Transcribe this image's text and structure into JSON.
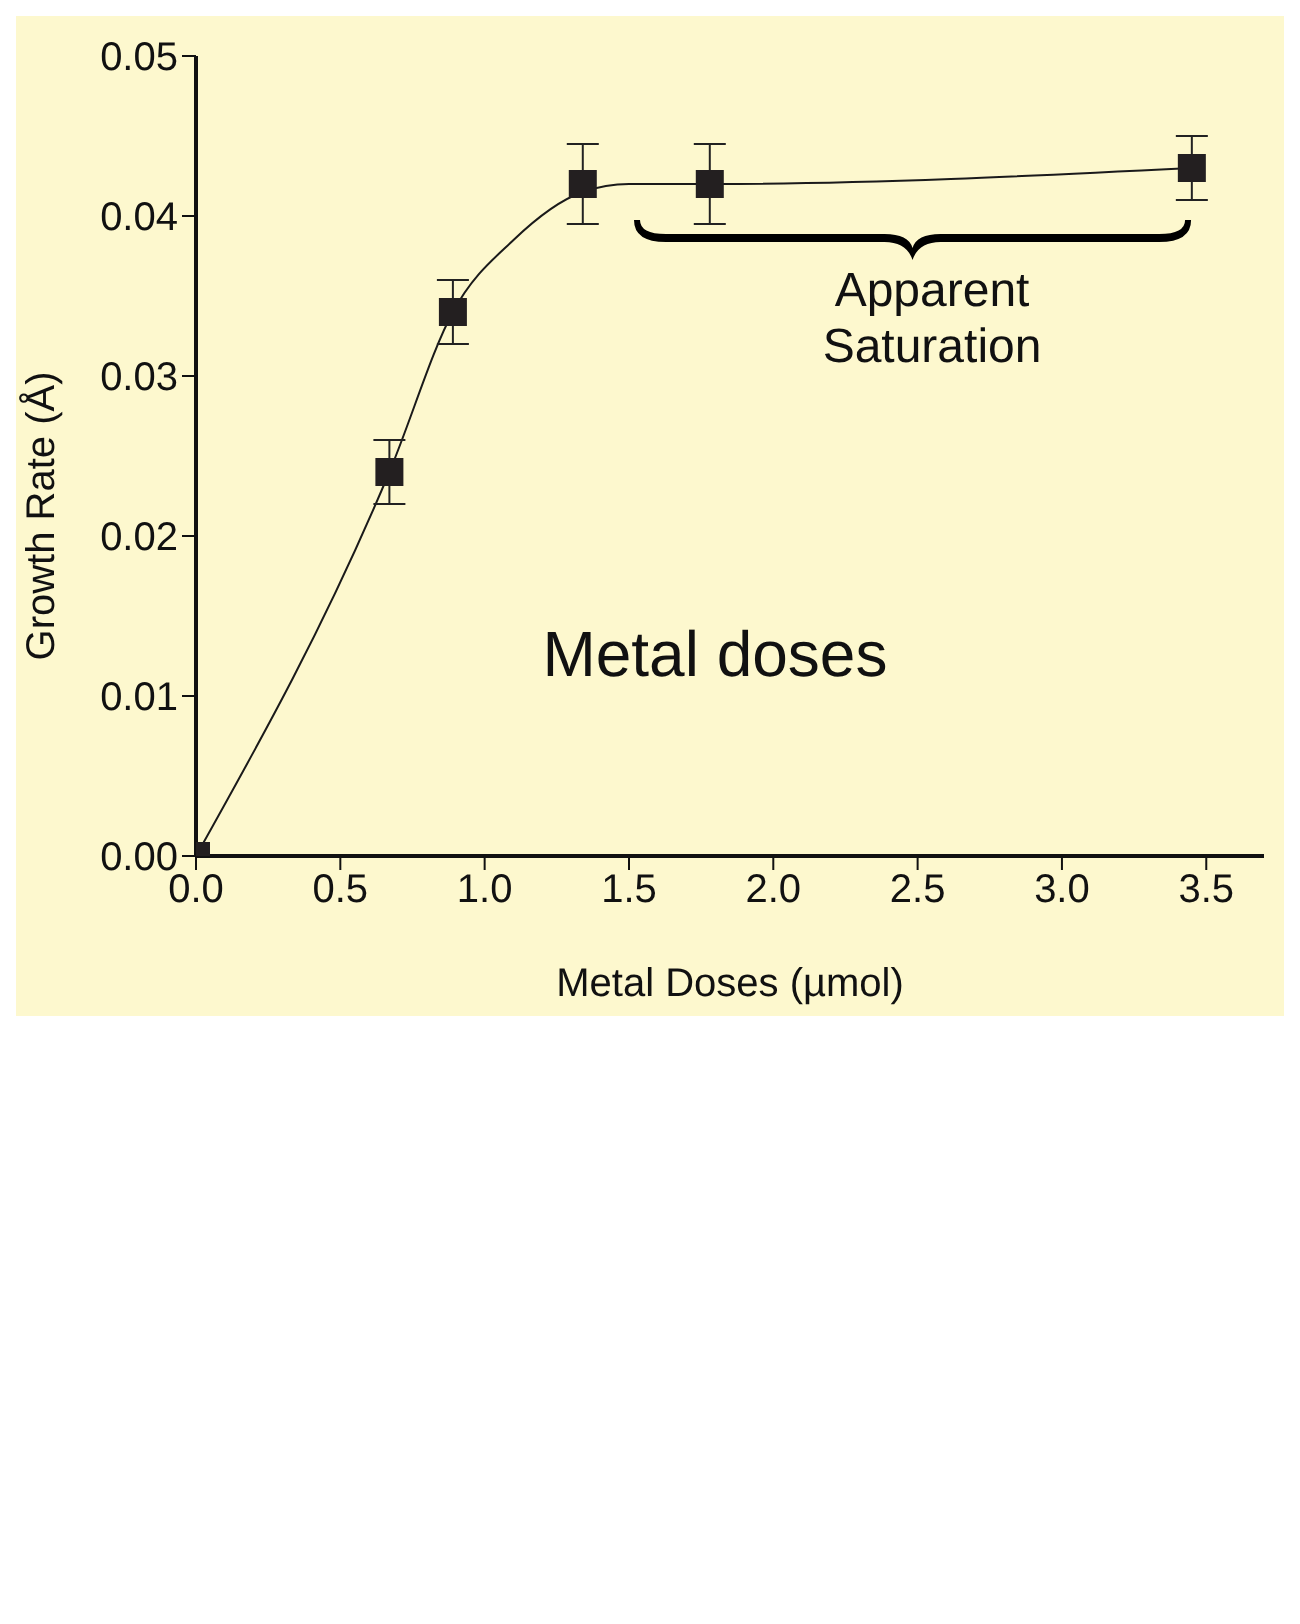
{
  "chart_data": {
    "type": "scatter",
    "xlabel": "Metal Doses (µmol)",
    "ylabel": "Growth Rate (Å)",
    "xlim": [
      0,
      3.7
    ],
    "xticks": [
      {
        "value": 0,
        "label": "0.0"
      },
      {
        "value": 0.5,
        "label": "0.5"
      },
      {
        "value": 1,
        "label": "1.0"
      },
      {
        "value": 1.5,
        "label": "1.5"
      },
      {
        "value": 2,
        "label": "2.0"
      },
      {
        "value": 2.5,
        "label": "2.5"
      },
      {
        "value": 3,
        "label": "3.0"
      },
      {
        "value": 3.5,
        "label": "3.5"
      }
    ],
    "ylim": [
      0,
      0.05
    ],
    "yticks": [
      {
        "value": 0,
        "label": "0.00"
      },
      {
        "value": 0.01,
        "label": "0.01"
      },
      {
        "value": 0.02,
        "label": "0.02"
      },
      {
        "value": 0.03,
        "label": "0.03"
      },
      {
        "value": 0.04,
        "label": "0.04"
      },
      {
        "value": 0.05,
        "label": "0.05"
      }
    ],
    "series": [
      {
        "type": "line",
        "color": "#1a1a1a",
        "marker": "none",
        "x": [
          0,
          0.67,
          0.89,
          1.1,
          1.34,
          1.5,
          1.78,
          3.45
        ],
        "values": [
          0,
          0.024,
          0.034,
          0.0385,
          0.0415,
          0.042,
          0.042,
          0.043
        ]
      },
      {
        "type": "scatter",
        "color": "#231f20",
        "marker": "square",
        "x": [
          0,
          0.67,
          0.89,
          1.34,
          1.78,
          3.45
        ],
        "values": [
          0,
          0.024,
          0.034,
          0.042,
          0.042,
          0.043
        ],
        "errors": [
          null,
          0.002,
          0.002,
          0.0025,
          0.0025,
          0.002
        ]
      }
    ],
    "annotations": [
      "Apparent\nSaturation",
      "Metal doses"
    ],
    "grid": false
  }
}
